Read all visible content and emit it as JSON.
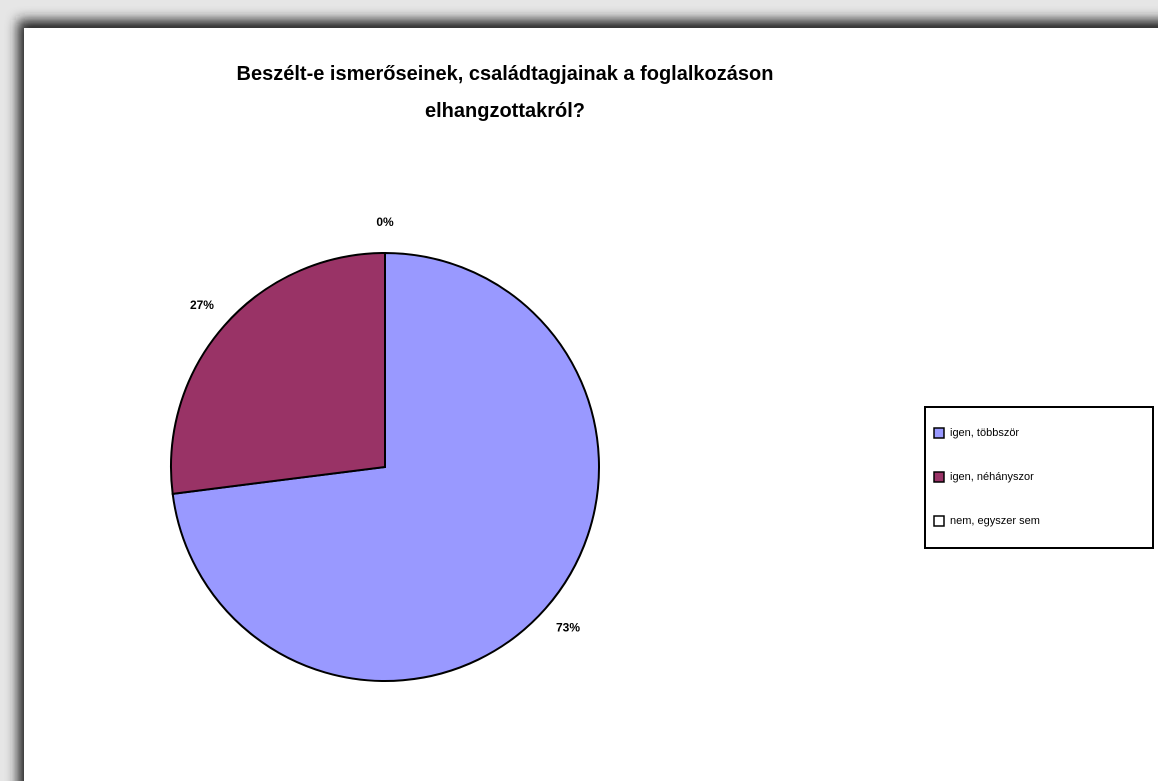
{
  "chart_data": {
    "type": "pie",
    "title": "Beszélt-e ismerőseinek, családtagjainak a foglalkozáson elhangzottakról?",
    "categories": [
      "igen, többször",
      "igen, néhányszor",
      "nem, egyszer sem"
    ],
    "values": [
      73,
      27,
      0
    ],
    "value_labels": [
      "73%",
      "27%",
      "0%"
    ],
    "colors": [
      "#9999ff",
      "#993366",
      "#ffffff"
    ],
    "legend": "right"
  }
}
